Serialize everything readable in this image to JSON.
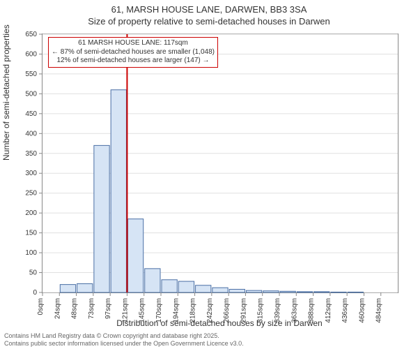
{
  "title_line1": "61, MARSH HOUSE LANE, DARWEN, BB3 3SA",
  "title_line2": "Size of property relative to semi-detached houses in Darwen",
  "y_axis_label": "Number of semi-detached properties",
  "x_axis_label": "Distribution of semi-detached houses by size in Darwen",
  "footer_line1": "Contains HM Land Registry data © Crown copyright and database right 2025.",
  "footer_line2": "Contains public sector information licensed under the Open Government Licence v3.0.",
  "chart": {
    "type": "histogram",
    "ylim": [
      0,
      650
    ],
    "ytick_step": 50,
    "x_cats": [
      "0sqm",
      "24sqm",
      "48sqm",
      "73sqm",
      "97sqm",
      "121sqm",
      "145sqm",
      "170sqm",
      "194sqm",
      "218sqm",
      "242sqm",
      "266sqm",
      "291sqm",
      "315sqm",
      "339sqm",
      "363sqm",
      "388sqm",
      "412sqm",
      "436sqm",
      "460sqm",
      "484sqm"
    ],
    "values": [
      0,
      20,
      22,
      370,
      510,
      185,
      60,
      32,
      28,
      18,
      12,
      8,
      5,
      4,
      3,
      2,
      2,
      1,
      1,
      0,
      0
    ],
    "bar_fill": "#d6e4f5",
    "bar_stroke": "#4a6fa5",
    "grid_color": "#e0e0e0",
    "axis_color": "#888888",
    "background_color": "#ffffff",
    "label_fontsize": 12,
    "tick_fontsize": 10,
    "title_fontsize": 13,
    "marker": {
      "x_cat_index": 5,
      "color": "#cc0000"
    },
    "callout": {
      "line1": "61 MARSH HOUSE LANE: 117sqm",
      "line2": "← 87% of semi-detached houses are smaller (1,048)",
      "line3": "12% of semi-detached houses are larger (147) →",
      "border_color": "#cc0000"
    }
  }
}
